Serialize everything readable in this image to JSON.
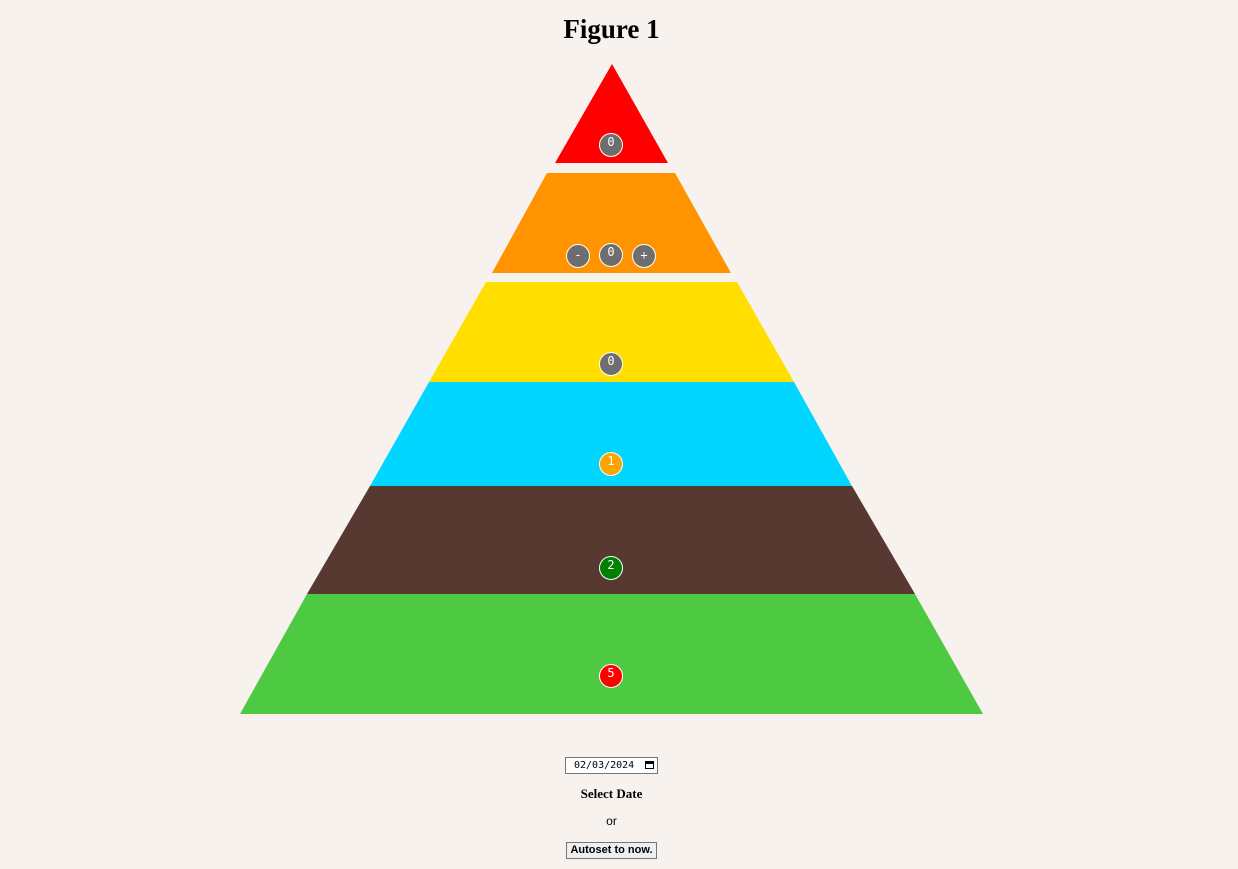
{
  "page": {
    "title": "Figure 1"
  },
  "pyramid": {
    "levels": [
      {
        "color": "#ff0000",
        "count": "0",
        "badge_color": "#6e6e6e"
      },
      {
        "color": "#ff9400",
        "count": "0",
        "badge_color": "#6e6e6e",
        "decrement_label": "-",
        "increment_label": "+"
      },
      {
        "color": "#ffde00",
        "count": "0",
        "badge_color": "#6e6e6e"
      },
      {
        "color": "#00d6ff",
        "count": "1",
        "badge_color": "#ffa500"
      },
      {
        "color": "#573932",
        "count": "2",
        "badge_color": "#008000"
      },
      {
        "color": "#4ec942",
        "count": "5",
        "badge_color": "#ff0000"
      }
    ]
  },
  "controls": {
    "date_value": "02/03/2024",
    "select_date_label": "Select Date",
    "or_text": "or",
    "autoset_label": "Autoset to now."
  }
}
